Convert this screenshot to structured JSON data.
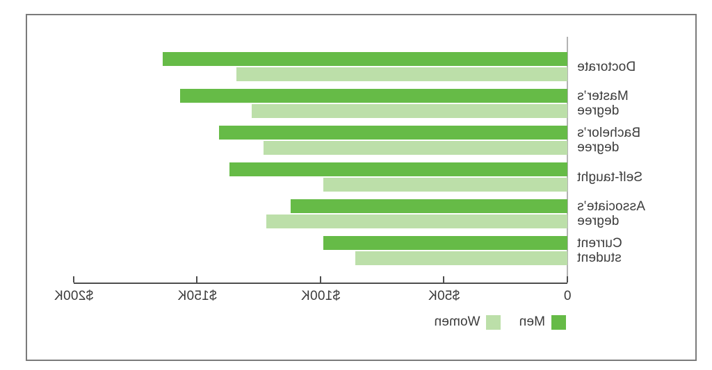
{
  "chart_data": {
    "type": "bar",
    "orientation": "horizontal",
    "mirrored_horizontally": true,
    "title": "",
    "xlabel": "",
    "ylabel": "",
    "categories": [
      "Doctorate",
      "Master’s degree",
      "Bachelor’s degree",
      "Self-taught",
      "Associate’s degree",
      "Current student"
    ],
    "category_label_lines": [
      [
        "Doctorate"
      ],
      [
        "Master’s",
        "degree"
      ],
      [
        "Bachelor’s",
        "degree"
      ],
      [
        "Self-taught"
      ],
      [
        "Associate’s",
        "degree"
      ],
      [
        "Current",
        "student"
      ]
    ],
    "series": [
      {
        "name": "Men",
        "color": "#66bb47",
        "values": [
          164,
          157,
          141,
          137,
          112,
          99
        ]
      },
      {
        "name": "Women",
        "color": "#bcdfa9",
        "values": [
          134,
          128,
          123,
          99,
          122,
          86
        ]
      }
    ],
    "values_unit": "USD (thousands)",
    "axis": {
      "min": 0,
      "max": 200,
      "ticks": [
        0,
        50,
        100,
        150,
        200
      ],
      "tick_labels": [
        "0",
        "$50K",
        "$100K",
        "$150K",
        "$200K"
      ]
    },
    "grid": false,
    "legend": {
      "position": "bottom-left",
      "items": [
        "Men",
        "Women"
      ]
    },
    "colors": {
      "men": "#66bb47",
      "women": "#bcdfa9",
      "axis_line": "#4d4d4d",
      "category_axis_line": "#b3b3b3",
      "frame_border": "#7a7a7a",
      "text": "#3b3b3b"
    }
  }
}
